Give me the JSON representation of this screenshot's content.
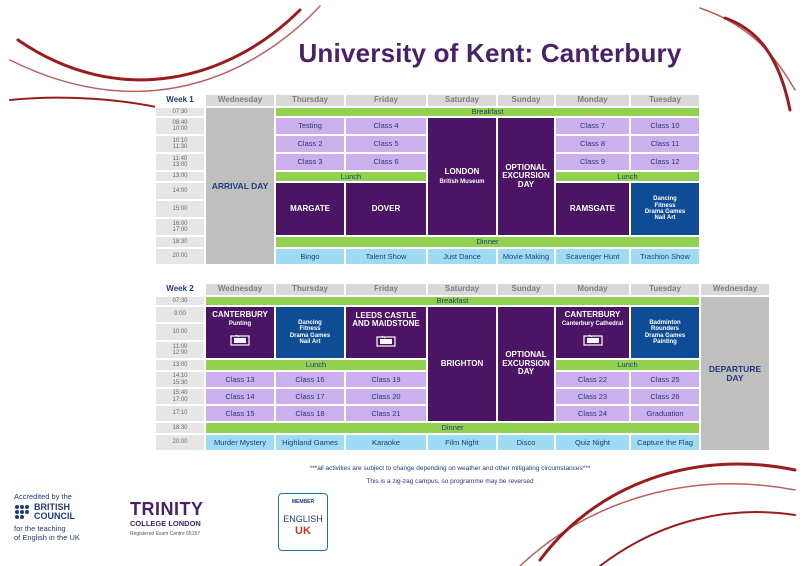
{
  "title": "University of Kent: Canterbury",
  "week1": {
    "label": "Week 1",
    "days": [
      "Wednesday",
      "Thursday",
      "Friday",
      "Saturday",
      "Sunday",
      "Monday",
      "Tuesday"
    ],
    "times": [
      [
        "07:30"
      ],
      [
        "08:40",
        "10:00"
      ],
      [
        "10:10",
        "11:30"
      ],
      [
        "11:40",
        "13:00"
      ],
      [
        "13:00"
      ],
      [
        "14:00"
      ],
      [
        "15:00"
      ],
      [
        "16:00",
        "17:00"
      ],
      [
        "18:30"
      ],
      [
        "20:00"
      ]
    ],
    "breakfast": "Breakfast",
    "lunch": "Lunch",
    "dinner": "Dinner",
    "arrival": "ARRIVAL DAY",
    "thu_classes": [
      "Testing",
      "Class 2",
      "Class 3"
    ],
    "fri_classes": [
      "Class 4",
      "Class 5",
      "Class 6"
    ],
    "mon_classes": [
      "Class 7",
      "Class 8",
      "Class 9"
    ],
    "tue_classes": [
      "Class 10",
      "Class 11",
      "Class 12"
    ],
    "sat_trip": "LONDON",
    "sat_sub": "British Museum",
    "sun_trip": "OPTIONAL EXCURSION DAY",
    "margate": "MARGATE",
    "dover": "DOVER",
    "ramsgate": "RAMSGATE",
    "tue_pm": [
      "Dancing",
      "Fitness",
      "Drama Games",
      "Nail Art"
    ],
    "evening": [
      "Bingo",
      "Talent Show",
      "Just Dance",
      "Movie Making",
      "Scavenger Hunt",
      "Trashion Show"
    ]
  },
  "week2": {
    "label": "Week 2",
    "days": [
      "Wednesday",
      "Thursday",
      "Friday",
      "Saturday",
      "Sunday",
      "Monday",
      "Tuesday",
      "Wednesday"
    ],
    "times": [
      [
        "07:30"
      ],
      [
        "9:00"
      ],
      [
        "10:00"
      ],
      [
        "11:00",
        "12:00"
      ],
      [
        "13:00"
      ],
      [
        "14:10",
        "15:30"
      ],
      [
        "15:40",
        "17:00"
      ],
      [
        "17:10"
      ],
      [
        "18:30"
      ],
      [
        "20:00"
      ]
    ],
    "breakfast": "Breakfast",
    "lunch": "Lunch",
    "dinner": "Dinner",
    "wed_trip": "CANTERBURY",
    "wed_sub": "Punting",
    "thu_am": [
      "Dancing",
      "Fitness",
      "Drama Games",
      "Nail Art"
    ],
    "fri_trip": "LEEDS CASTLE AND MAIDSTONE",
    "sat_trip": "BRIGHTON",
    "sun_trip": "OPTIONAL EXCURSION DAY",
    "mon_trip": "CANTERBURY",
    "mon_sub": "Canterbury Cathedral",
    "tue_am": [
      "Badminton",
      "Rounders",
      "Drama Games",
      "Painting"
    ],
    "departure": "DEPARTURE DAY",
    "wed_classes": [
      "Class 13",
      "Class 14",
      "Class 15"
    ],
    "thu_classes": [
      "Class 16",
      "Class 17",
      "Class 18"
    ],
    "fri_classes": [
      "Class 19",
      "Class 20",
      "Class 21"
    ],
    "mon_classes": [
      "Class 22",
      "Class 23",
      "Class 24"
    ],
    "tue_classes": [
      "Class 25",
      "Class 26",
      "Graduation"
    ],
    "evening": [
      "Murder Mystery",
      "Highland Games",
      "Karaoke",
      "Film Night",
      "Disco",
      "Quiz Night",
      "Capture the Flag"
    ]
  },
  "notes": {
    "line1": "***all activities are subject to change depending on weather and other mitigating circumstances***",
    "line2": "This is a zig-zag campus, so programme may be reversed"
  },
  "logos": {
    "bc_top": "Accredited by the",
    "bc_name1": "BRITISH",
    "bc_name2": "COUNCIL",
    "bc_bottom1": "for the teaching",
    "bc_bottom2": "of English in the UK",
    "trinity_name": "TRINITY",
    "trinity_sub": "COLLEGE LONDON",
    "trinity_reg": "Registered Exam Centre 65157",
    "eu_member": "MEMBER",
    "eu_english": "ENGLISH",
    "eu_uk": "UK"
  },
  "colors": {
    "title": "#4a2168",
    "green": "#92d050",
    "lilac": "#ccb0ee",
    "purple": "#4b1464",
    "blue": "#0e4d96",
    "cyan": "#9fdcf4",
    "grey": "#bfbfbf",
    "swirl": "#9b1c1c"
  }
}
